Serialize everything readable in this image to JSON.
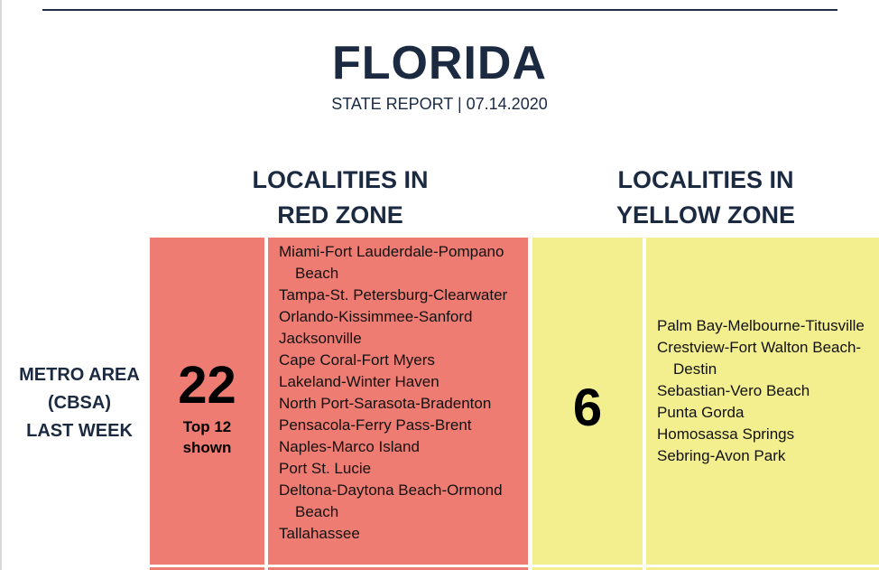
{
  "report": {
    "state": "FLORIDA",
    "subtitle": "STATE REPORT | 07.14.2020"
  },
  "zones": {
    "red": {
      "header_line1": "LOCALITIES IN",
      "header_line2": "RED ZONE",
      "count": "22",
      "note_line1": "Top 12",
      "note_line2": "shown",
      "color": "#ef7c72",
      "localities": [
        "Miami-Fort Lauderdale-Pompano Beach",
        "Tampa-St. Petersburg-Clearwater",
        "Orlando-Kissimmee-Sanford",
        "Jacksonville",
        "Cape Coral-Fort Myers",
        "Lakeland-Winter Haven",
        "North Port-Sarasota-Bradenton",
        "Pensacola-Ferry Pass-Brent",
        "Naples-Marco Island",
        "Port St. Lucie",
        "Deltona-Daytona Beach-Ormond Beach",
        "Tallahassee"
      ]
    },
    "yellow": {
      "header_line1": "LOCALITIES IN",
      "header_line2": "YELLOW ZONE",
      "count": "6",
      "color": "#f4ef8e",
      "localities": [
        "Palm Bay-Melbourne-Titusville",
        "Crestview-Fort Walton Beach-Destin",
        "Sebastian-Vero Beach",
        "Punta Gorda",
        "Homosassa Springs",
        "Sebring-Avon Park"
      ]
    }
  },
  "row": {
    "label_line1": "METRO AREA",
    "label_line2": "(CBSA)",
    "label_line3": "LAST WEEK"
  }
}
